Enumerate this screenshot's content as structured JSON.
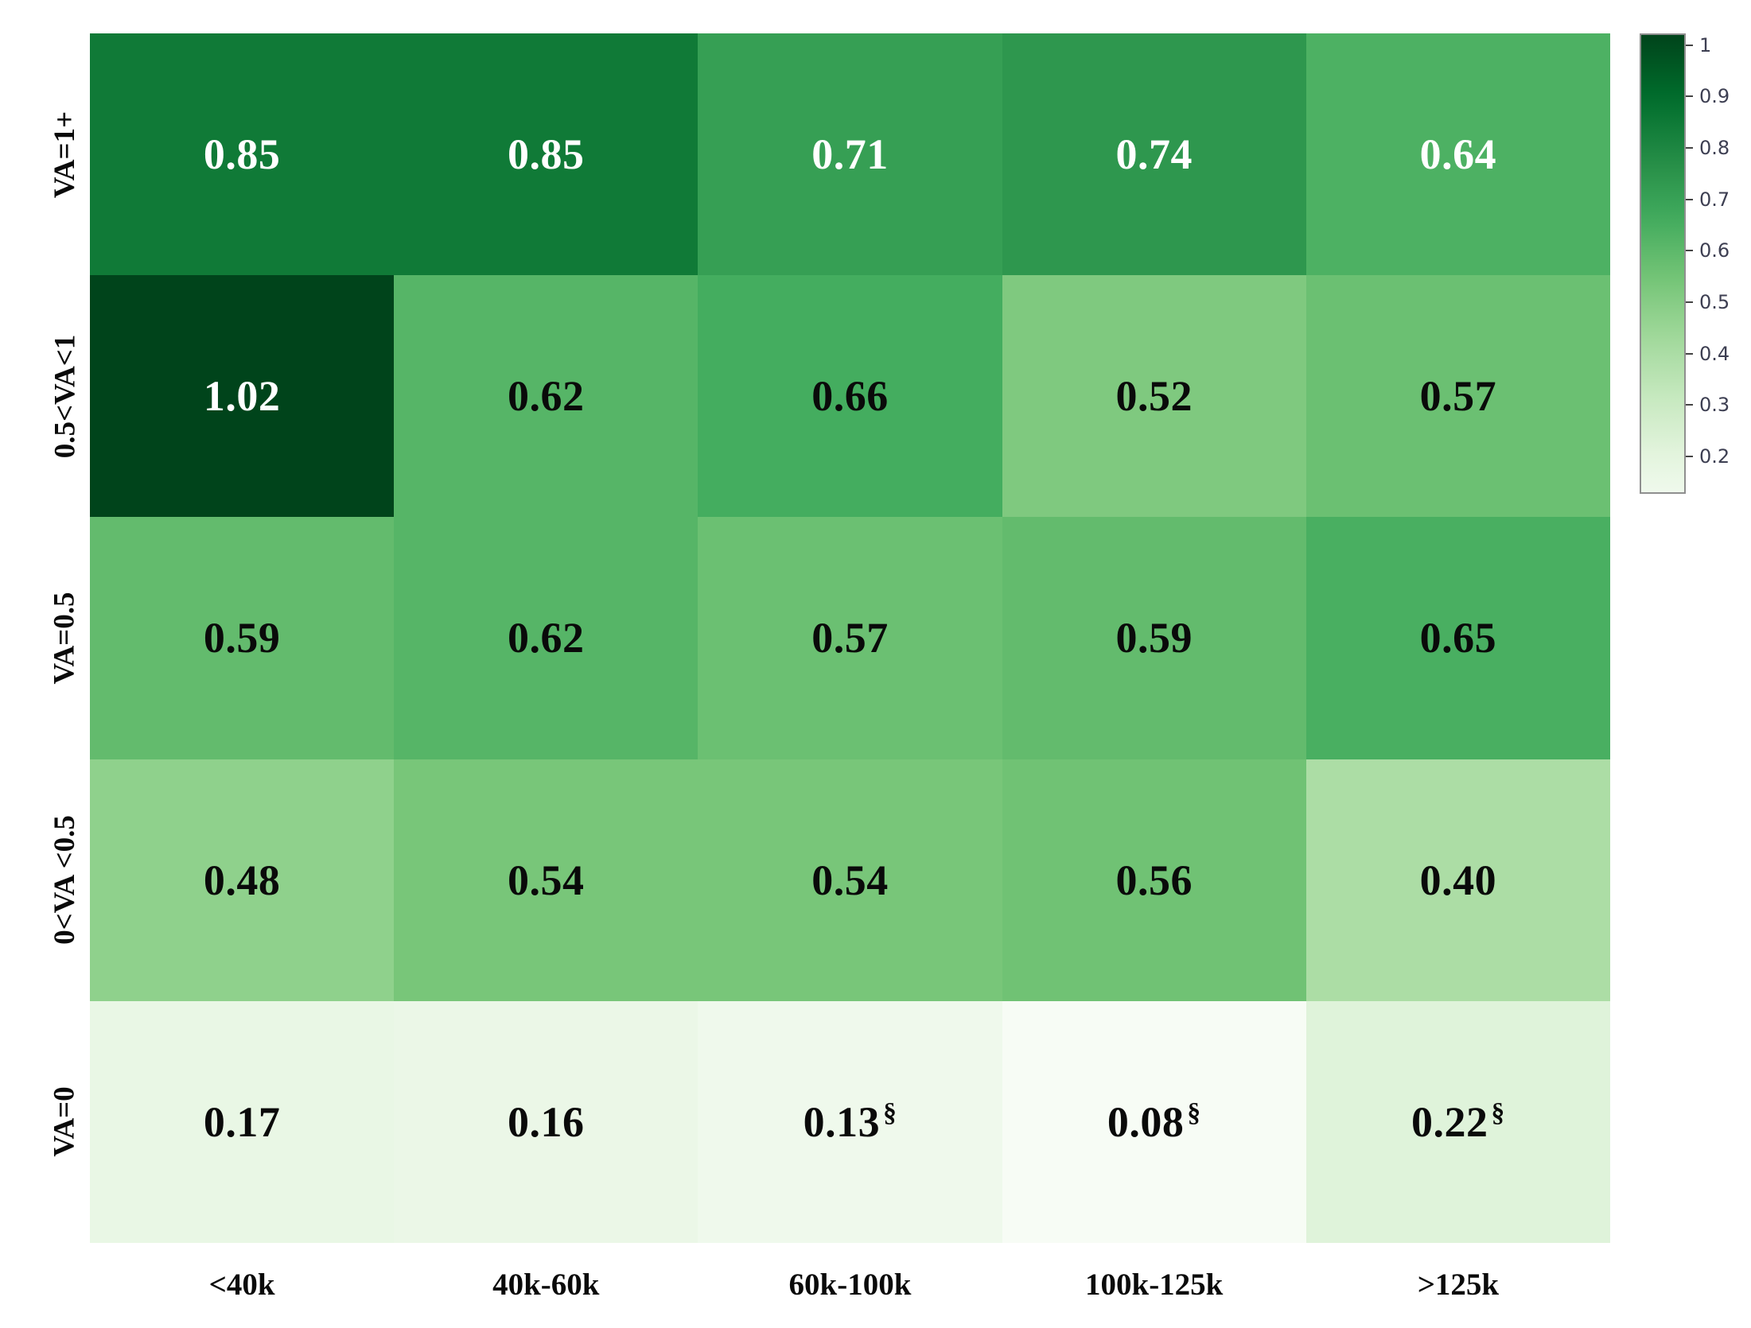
{
  "chart_data": {
    "type": "heatmap",
    "title": "",
    "rows": [
      "VA=1+",
      "0.5<VA<1",
      "VA=0.5",
      "0<VA <0.5",
      "VA=0"
    ],
    "columns": [
      "<40k",
      "40k-60k",
      "60k-100k",
      "100k-125k",
      ">125k"
    ],
    "values": [
      [
        0.85,
        0.85,
        0.71,
        0.74,
        0.64
      ],
      [
        1.02,
        0.62,
        0.66,
        0.52,
        0.57
      ],
      [
        0.59,
        0.62,
        0.57,
        0.59,
        0.65
      ],
      [
        0.48,
        0.54,
        0.54,
        0.56,
        0.4
      ],
      [
        0.17,
        0.16,
        0.13,
        0.08,
        0.22
      ]
    ],
    "annotations": [
      [
        "0.85",
        "0.85",
        "0.71",
        "0.74",
        "0.64"
      ],
      [
        "1.02",
        "0.62",
        "0.66",
        "0.52",
        "0.57"
      ],
      [
        "0.59",
        "0.62",
        "0.57",
        "0.59",
        "0.65"
      ],
      [
        "0.48",
        "0.54",
        "0.54",
        "0.56",
        "0.40"
      ],
      [
        "0.17",
        "0.16",
        "0.13§",
        "0.08§",
        "0.22§"
      ]
    ],
    "superscript_marker": "§",
    "text_colors": [
      [
        "white",
        "white",
        "white",
        "white",
        "white"
      ],
      [
        "white",
        "black",
        "black",
        "black",
        "black"
      ],
      [
        "black",
        "black",
        "black",
        "black",
        "black"
      ],
      [
        "black",
        "black",
        "black",
        "black",
        "black"
      ],
      [
        "black",
        "black",
        "black",
        "black",
        "black"
      ]
    ],
    "colormap": "Greens",
    "colormap_stops": [
      [
        247,
        252,
        245
      ],
      [
        229,
        245,
        224
      ],
      [
        199,
        233,
        192
      ],
      [
        161,
        217,
        155
      ],
      [
        116,
        196,
        118
      ],
      [
        65,
        171,
        93
      ],
      [
        35,
        139,
        69
      ],
      [
        0,
        109,
        44
      ],
      [
        0,
        68,
        27
      ]
    ],
    "vmin": 0.08,
    "vmax": 1.02,
    "legend_position": "right",
    "grid": false,
    "colorbar": {
      "tick_labels": [
        "1",
        "0.9",
        "0.8",
        "0.7",
        "0.6",
        "0.5",
        "0.4",
        "0.3",
        "0.2"
      ],
      "top_value": 1.023,
      "bottom_value": 0.133
    },
    "cell_text_black_hex": "#0a0a0a",
    "cell_text_white_hex": "#ffffff"
  }
}
